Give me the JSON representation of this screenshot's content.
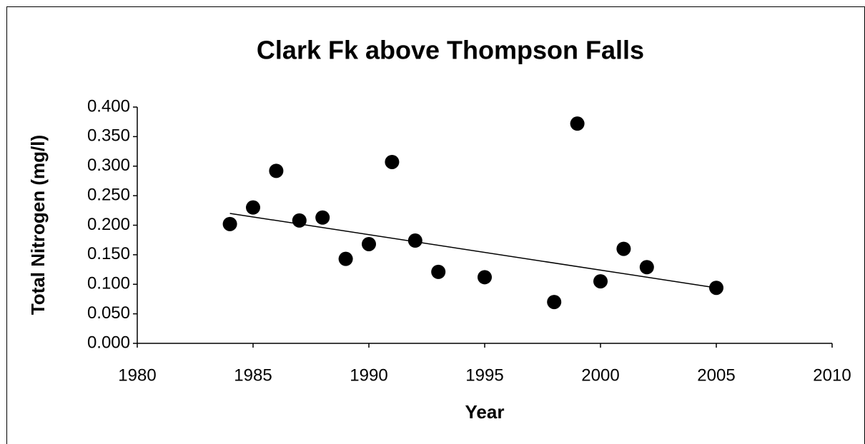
{
  "chart_data": {
    "type": "scatter",
    "title": "Clark Fk above Thompson Falls",
    "x_label": "Year",
    "y_label": "Total Nitrogen (mg/l)",
    "x": [
      1984,
      1985,
      1986,
      1987,
      1988,
      1989,
      1990,
      1991,
      1992,
      1993,
      1995,
      1998,
      1999,
      2000,
      2001,
      2002,
      2005
    ],
    "values": [
      0.202,
      0.23,
      0.292,
      0.208,
      0.213,
      0.143,
      0.168,
      0.307,
      0.174,
      0.121,
      0.112,
      0.07,
      0.372,
      0.105,
      0.16,
      0.129,
      0.094
    ],
    "color": "#000000",
    "trend_line": {
      "x": [
        1984,
        2005
      ],
      "values": [
        0.22,
        0.094
      ],
      "color": "#000000"
    },
    "xlim": [
      1980,
      2010
    ],
    "xticks": [
      1980,
      1985,
      1990,
      1995,
      2000,
      2005,
      2010
    ],
    "ylim": [
      0,
      0.4
    ],
    "yticks": [
      {
        "value": 0,
        "label": "0.000"
      },
      {
        "value": 0.05,
        "label": "0.050"
      },
      {
        "value": 0.1,
        "label": "0.100"
      },
      {
        "value": 0.15,
        "label": "0.150"
      },
      {
        "value": 0.2,
        "label": "0.200"
      },
      {
        "value": 0.25,
        "label": "0.250"
      },
      {
        "value": 0.3,
        "label": "0.300"
      },
      {
        "value": 0.35,
        "label": "0.350"
      },
      {
        "value": 0.4,
        "label": "0.400"
      }
    ],
    "grid": false
  }
}
